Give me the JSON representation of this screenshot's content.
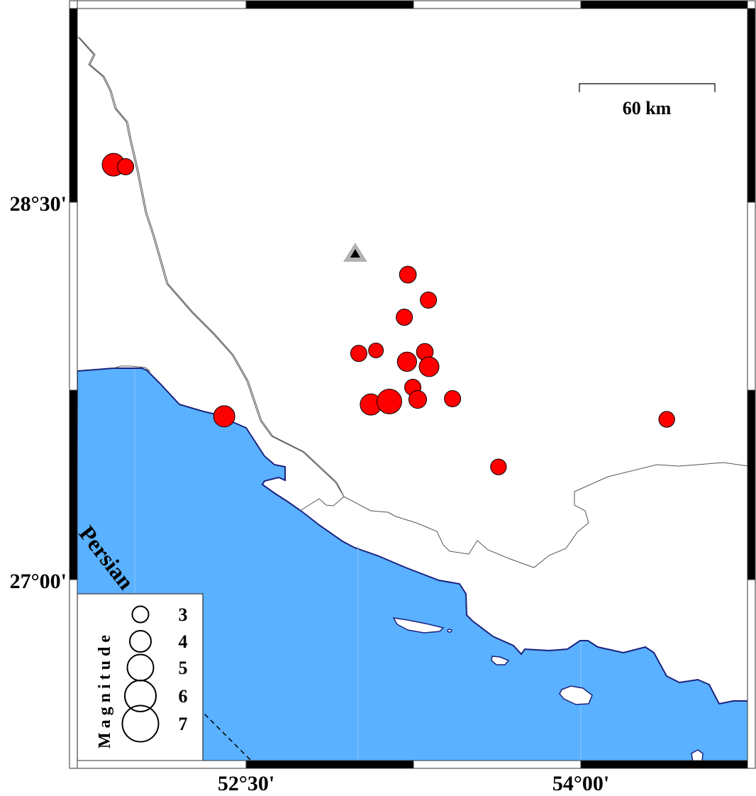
{
  "map": {
    "colors": {
      "sea": "#5ab1ff",
      "coast": "#1a237e",
      "land": "#ffffff",
      "event": "#ff0000",
      "station_outer": "#b3b3b3",
      "station_inner": "#000000"
    },
    "lat_labels": [
      "28°30'",
      "27°00'"
    ],
    "lon_labels": [
      "52°30'",
      "54°00'"
    ],
    "sea_label": "Persian",
    "scale_bar": {
      "label": "60 km",
      "length_km": 60
    },
    "station": {
      "icon": "triangle-icon",
      "lon": 52.989,
      "lat": 28.297
    },
    "legend": {
      "title": "Magnitude",
      "entries": [
        {
          "label": "3",
          "mag": 3
        },
        {
          "label": "4",
          "mag": 4
        },
        {
          "label": "5",
          "mag": 5
        },
        {
          "label": "6",
          "mag": 6
        },
        {
          "label": "7",
          "mag": 7
        }
      ]
    },
    "events": [
      {
        "lon": 51.906,
        "lat": 28.649,
        "mag": 4.3
      },
      {
        "lon": 51.96,
        "lat": 28.641,
        "mag": 3.0
      },
      {
        "lon": 52.402,
        "lat": 27.649,
        "mag": 4.0
      },
      {
        "lon": 53.225,
        "lat": 28.212,
        "mag": 3.1
      },
      {
        "lon": 53.317,
        "lat": 28.111,
        "mag": 3.0
      },
      {
        "lon": 53.209,
        "lat": 28.043,
        "mag": 3.0
      },
      {
        "lon": 53.005,
        "lat": 27.899,
        "mag": 3.0
      },
      {
        "lon": 53.082,
        "lat": 27.911,
        "mag": 2.7
      },
      {
        "lon": 53.301,
        "lat": 27.905,
        "mag": 3.1
      },
      {
        "lon": 53.221,
        "lat": 27.866,
        "mag": 3.6
      },
      {
        "lon": 53.32,
        "lat": 27.846,
        "mag": 3.7
      },
      {
        "lon": 53.247,
        "lat": 27.764,
        "mag": 3.0
      },
      {
        "lon": 53.059,
        "lat": 27.696,
        "mag": 4.0
      },
      {
        "lon": 53.142,
        "lat": 27.708,
        "mag": 4.7
      },
      {
        "lon": 53.269,
        "lat": 27.716,
        "mag": 3.3
      },
      {
        "lon": 53.425,
        "lat": 27.719,
        "mag": 3.0
      },
      {
        "lon": 53.631,
        "lat": 27.448,
        "mag": 2.9
      },
      {
        "lon": 54.385,
        "lat": 27.637,
        "mag": 2.9
      }
    ]
  }
}
